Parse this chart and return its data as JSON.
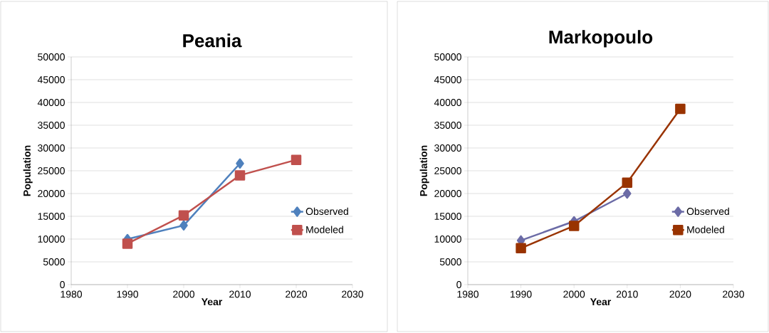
{
  "chart_data": [
    {
      "type": "line",
      "title": "Peania",
      "xlabel": "Year",
      "ylabel": "Population",
      "xlim": [
        1980,
        2030
      ],
      "xticks": [
        1980,
        1990,
        2000,
        2010,
        2020,
        2030
      ],
      "ylim": [
        0,
        50000
      ],
      "yticks": [
        0,
        5000,
        10000,
        15000,
        20000,
        25000,
        30000,
        35000,
        40000,
        45000,
        50000
      ],
      "grid": "y",
      "legend": "right",
      "series": [
        {
          "name": "Observed",
          "color": "#4f81bd",
          "marker": "diamond",
          "x": [
            1990,
            2000,
            2010
          ],
          "values": [
            10000,
            13000,
            26600
          ]
        },
        {
          "name": "Modeled",
          "color": "#c0504d",
          "marker": "square",
          "x": [
            1990,
            2000,
            2010,
            2020
          ],
          "values": [
            9000,
            15200,
            24000,
            27400
          ]
        }
      ]
    },
    {
      "type": "line",
      "title": "Markopoulo",
      "xlabel": "Year",
      "ylabel": "Population",
      "xlim": [
        1980,
        2030
      ],
      "xticks": [
        1980,
        1990,
        2000,
        2010,
        2020,
        2030
      ],
      "ylim": [
        0,
        50000
      ],
      "yticks": [
        0,
        5000,
        10000,
        15000,
        20000,
        25000,
        30000,
        35000,
        40000,
        45000,
        50000
      ],
      "grid": "y",
      "legend": "right",
      "series": [
        {
          "name": "Observed",
          "color": "#6b6ba6",
          "marker": "diamond",
          "x": [
            1990,
            2000,
            2010
          ],
          "values": [
            9700,
            13900,
            20000
          ]
        },
        {
          "name": "Modeled",
          "color": "#993300",
          "marker": "square",
          "x": [
            1990,
            2000,
            2010,
            2020
          ],
          "values": [
            8000,
            12900,
            22400,
            38600
          ]
        }
      ]
    }
  ]
}
